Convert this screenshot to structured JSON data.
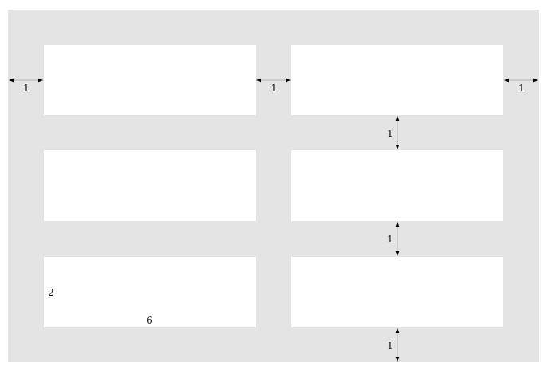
{
  "colors": {
    "background": "#e4e4e4",
    "box": "#ffffff",
    "dimension_line": "#b0b0b0",
    "arrowhead": "#000000"
  },
  "grid": {
    "columns": 2,
    "rows": 3
  },
  "dimension_labels": {
    "left_margin": "1",
    "column_gap": "1",
    "right_margin": "1",
    "row_gap_1": "1",
    "row_gap_2": "1",
    "bottom_margin": "1",
    "box_height": "2",
    "box_width": "6"
  }
}
